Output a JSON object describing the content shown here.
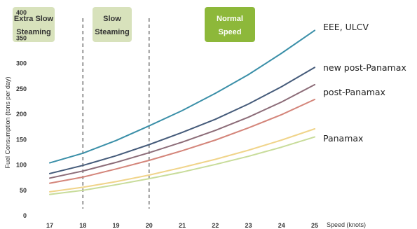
{
  "chart_data": {
    "type": "line",
    "xlabel": "Speed (knots)",
    "ylabel": "Fuel Consumption (tons per day)",
    "x": [
      17,
      18,
      19,
      20,
      21,
      22,
      23,
      24,
      25
    ],
    "xlim": [
      17,
      25
    ],
    "ylim": [
      0,
      400
    ],
    "yticks": [
      0,
      50,
      100,
      150,
      200,
      250,
      300,
      350,
      400
    ],
    "grid": false,
    "series": [
      {
        "name": "EEE, ULCV",
        "color": "#3a8fa8",
        "values": [
          104,
          123,
          148,
          177,
          207,
          241,
          278,
          320,
          365
        ]
      },
      {
        "name": "new post-Panamax",
        "color": "#455b7a",
        "values": [
          83,
          99,
          118,
          140,
          164,
          190,
          220,
          254,
          292
        ]
      },
      {
        "name": "post-Panamax",
        "color": "#8c6c78",
        "values": [
          74,
          88,
          105,
          124,
          145,
          168,
          194,
          224,
          258
        ]
      },
      {
        "name": "",
        "color": "#d4857a",
        "values": [
          64,
          76,
          92,
          109,
          128,
          149,
          173,
          199,
          229
        ]
      },
      {
        "name": "Panamax",
        "color": "#f0d48a",
        "values": [
          47,
          56,
          67,
          80,
          95,
          111,
          129,
          149,
          171
        ]
      },
      {
        "name": "",
        "color": "#c8dc9a",
        "values": [
          42,
          50,
          61,
          73,
          86,
          101,
          117,
          135,
          155
        ]
      }
    ],
    "zones": [
      {
        "label_lines": [
          "Extra Slow",
          "Steaming"
        ],
        "fill": "#d8e2bc",
        "text_color": "#333333",
        "boundary_x": 18
      },
      {
        "label_lines": [
          "Slow",
          "Steaming"
        ],
        "fill": "#d8e2bc",
        "text_color": "#333333",
        "boundary_x": 20
      },
      {
        "label_lines": [
          "Normal",
          "Speed"
        ],
        "fill": "#8db83a",
        "text_color": "#ffffff"
      }
    ]
  }
}
